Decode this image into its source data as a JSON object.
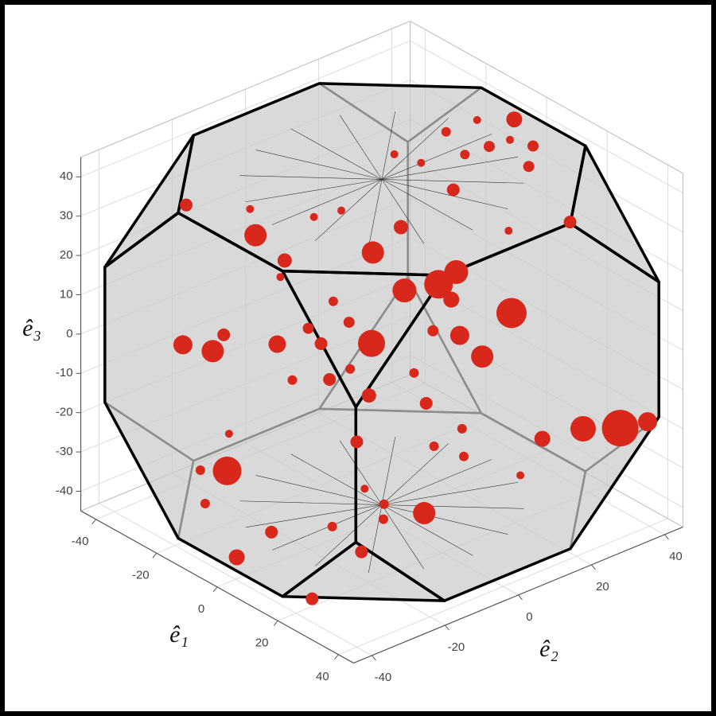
{
  "chart_data": {
    "type": "scatter3d",
    "xlabel": "ê₁",
    "ylabel": "ê₂",
    "zlabel": "ê₃",
    "color": "#d8281c",
    "x": [
      -1,
      4,
      5,
      -9,
      -6,
      -2,
      -4,
      0,
      -3,
      -10,
      -14,
      -38,
      -26,
      -29,
      -20,
      -17,
      -9,
      -7,
      -20,
      -19,
      15,
      8,
      3,
      4,
      -1,
      15,
      6,
      -10,
      -6,
      -27,
      -22,
      -22,
      -14,
      -11,
      -1,
      -8,
      10,
      15,
      -9,
      -4,
      -2,
      3,
      7,
      11,
      5,
      16,
      18,
      21,
      30,
      35,
      40,
      43,
      -10,
      -13,
      -14,
      -10,
      20,
      14,
      10,
      15,
      9,
      1,
      -2,
      15,
      12,
      30,
      6
    ],
    "y": [
      37,
      38,
      36,
      25,
      31,
      31,
      26,
      35,
      22,
      19,
      15,
      -22,
      -13,
      -12,
      -2,
      3,
      5,
      11,
      -10,
      -12,
      39,
      28,
      13,
      17,
      7,
      23,
      14,
      -5,
      -4,
      -32,
      -28,
      -25,
      -17,
      -11,
      -2,
      -10,
      13,
      15,
      -17,
      -11,
      -7,
      -6,
      3,
      3,
      -11,
      1,
      7,
      5,
      19,
      26,
      32,
      37,
      -34,
      -31,
      -38,
      -40,
      -5,
      -11,
      -13,
      -12,
      -21,
      -31,
      -38,
      -18,
      -29,
      13,
      9
    ],
    "z": [
      42,
      37,
      33,
      40,
      42,
      37,
      36,
      38,
      29,
      34,
      36,
      27,
      21,
      26,
      24,
      25,
      17,
      22,
      16,
      13,
      22,
      21,
      11,
      13,
      10,
      5,
      8,
      8,
      4,
      0,
      -1,
      2,
      0,
      3,
      0,
      0,
      1,
      -3,
      -7,
      -7,
      -5,
      -10,
      -6,
      -12,
      -19,
      -20,
      -17,
      -22,
      -19,
      -17,
      -17,
      -16,
      -24,
      -17,
      -24,
      -30,
      -33,
      -31,
      -28,
      -34,
      -35,
      -36,
      -41,
      -40,
      -49,
      -26,
      2
    ],
    "sizes": [
      10,
      7,
      7,
      6,
      5,
      7,
      6,
      5,
      8,
      5,
      5,
      8,
      14,
      5,
      5,
      5,
      14,
      9,
      9,
      5,
      8,
      5,
      18,
      15,
      15,
      19,
      10,
      6,
      7,
      12,
      14,
      8,
      11,
      7,
      17,
      8,
      12,
      14,
      6,
      8,
      6,
      9,
      6,
      8,
      8,
      6,
      6,
      6,
      10,
      16,
      23,
      12,
      18,
      5,
      6,
      6,
      14,
      6,
      5,
      6,
      6,
      8,
      10,
      8,
      8,
      5,
      7
    ],
    "xlim": [
      -45,
      45
    ],
    "ylim": [
      -45,
      45
    ],
    "zlim": [
      -45,
      45
    ],
    "xticks": [
      -40,
      -20,
      0,
      20,
      40
    ],
    "yticks": [
      -40,
      -20,
      0,
      20,
      40
    ],
    "zticks": [
      -40,
      -30,
      -20,
      -10,
      0,
      10,
      20,
      30,
      40
    ],
    "grid": true
  }
}
